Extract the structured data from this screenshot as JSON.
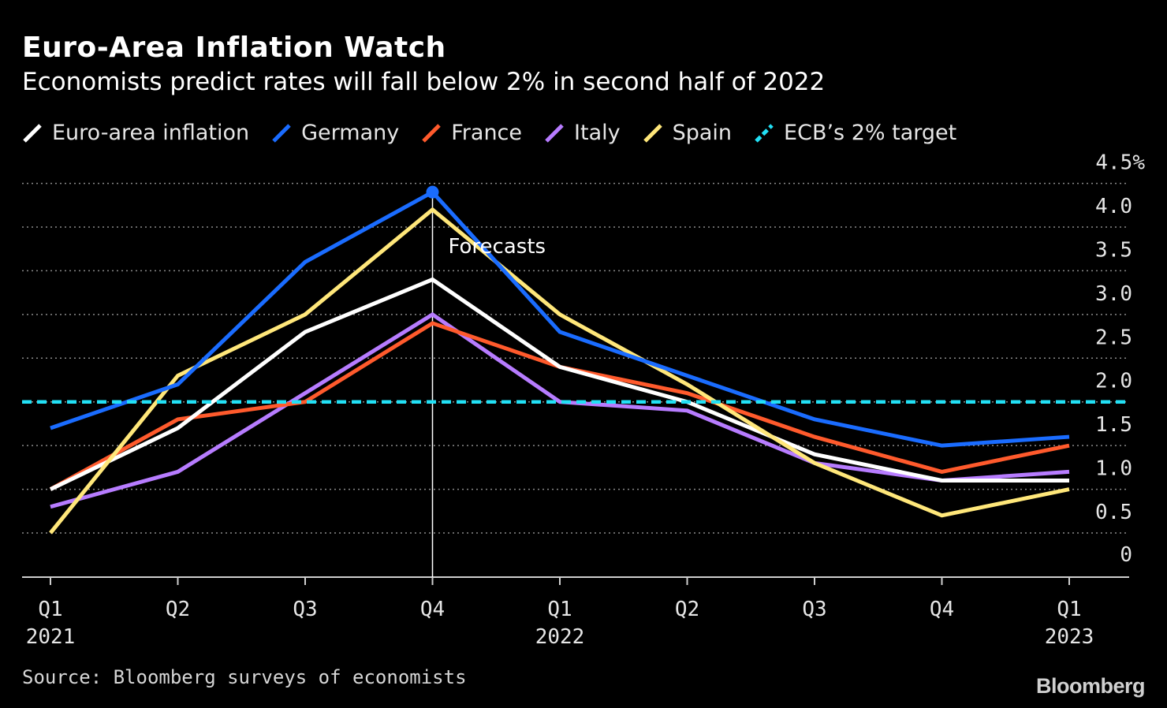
{
  "title": "Euro-Area Inflation Watch",
  "subtitle": "Economists predict rates will fall below 2% in second half of 2022",
  "source": "Source: Bloomberg surveys of economists",
  "brand": "Bloomberg",
  "chart_data": {
    "type": "line",
    "title": "Euro-Area Inflation Watch",
    "subtitle": "Economists predict rates will fall below 2% in second half of 2022",
    "x": [
      "Q1 2021",
      "Q2 2021",
      "Q3 2021",
      "Q4 2021",
      "Q1 2022",
      "Q2 2022",
      "Q3 2022",
      "Q4 2022",
      "Q1 2023"
    ],
    "x_tick_labels": [
      {
        "top": "Q1",
        "bottom": "2021"
      },
      {
        "top": "Q2",
        "bottom": ""
      },
      {
        "top": "Q3",
        "bottom": ""
      },
      {
        "top": "Q4",
        "bottom": ""
      },
      {
        "top": "Q1",
        "bottom": "2022"
      },
      {
        "top": "Q2",
        "bottom": ""
      },
      {
        "top": "Q3",
        "bottom": ""
      },
      {
        "top": "Q4",
        "bottom": ""
      },
      {
        "top": "Q1",
        "bottom": "2023"
      }
    ],
    "y_tick_labels": [
      "0",
      "0.5",
      "1.0",
      "1.5",
      "2.0",
      "2.5",
      "3.0",
      "3.5",
      "4.0",
      "4.5%"
    ],
    "ylim": [
      0,
      4.5
    ],
    "y_axis_side": "right",
    "grid": "horizontal dotted",
    "legend_position": "top",
    "series": [
      {
        "name": "Euro-area inflation",
        "color": "#ffffff",
        "values": [
          1.0,
          1.7,
          2.8,
          3.4,
          2.4,
          2.0,
          1.4,
          1.1,
          1.1
        ]
      },
      {
        "name": "Germany",
        "color": "#1a6cff",
        "values": [
          1.7,
          2.2,
          3.6,
          4.4,
          2.8,
          2.3,
          1.8,
          1.5,
          1.6
        ]
      },
      {
        "name": "France",
        "color": "#ff5a2c",
        "values": [
          1.0,
          1.8,
          2.0,
          2.9,
          2.4,
          2.1,
          1.6,
          1.2,
          1.5
        ]
      },
      {
        "name": "Italy",
        "color": "#b77cff",
        "values": [
          0.8,
          1.2,
          2.1,
          3.0,
          2.0,
          1.9,
          1.3,
          1.1,
          1.2
        ]
      },
      {
        "name": "Spain",
        "color": "#ffe77a",
        "values": [
          0.5,
          2.3,
          3.0,
          4.2,
          3.0,
          2.2,
          1.3,
          0.7,
          1.0
        ]
      }
    ],
    "reference_lines": [
      {
        "name": "ECB’s 2% target",
        "color": "#22e0f5",
        "value": 2.0,
        "style": "dashed"
      }
    ],
    "annotations": [
      {
        "text": "Forecasts",
        "x": "Q4 2021",
        "kind": "vertical-line"
      }
    ],
    "highlight_point": {
      "series": "Germany",
      "x": "Q4 2021",
      "value": 4.4
    }
  },
  "legend": [
    {
      "label": "Euro-area inflation",
      "color": "#ffffff",
      "style": "solid"
    },
    {
      "label": "Germany",
      "color": "#1a6cff",
      "style": "solid"
    },
    {
      "label": "France",
      "color": "#ff5a2c",
      "style": "solid"
    },
    {
      "label": "Italy",
      "color": "#b77cff",
      "style": "solid"
    },
    {
      "label": "Spain",
      "color": "#ffe77a",
      "style": "solid"
    },
    {
      "label": "ECB’s 2% target",
      "color": "#22e0f5",
      "style": "dashed"
    }
  ]
}
